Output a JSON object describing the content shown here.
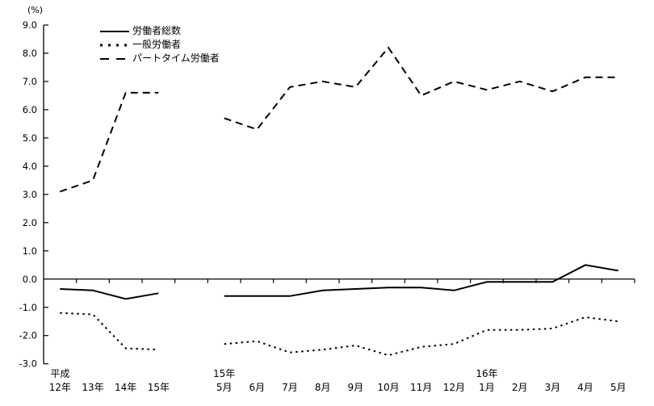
{
  "unit_label": "(%)",
  "legend": {
    "items": [
      {
        "label": "労働者総数",
        "style": "solid"
      },
      {
        "label": "一般労働者",
        "style": "dotted"
      },
      {
        "label": "パートタイム労働者",
        "style": "dashed"
      }
    ]
  },
  "chart_data": {
    "type": "line",
    "title": "",
    "ylabel": "(%)",
    "xlabel": "",
    "ylim": [
      -3.0,
      9.0
    ],
    "ytick_step": 1.0,
    "ytick_labels": [
      "9.0",
      "8.0",
      "7.0",
      "6.0",
      "5.0",
      "4.0",
      "3.0",
      "2.0",
      "1.0",
      "0.0",
      "-1.0",
      "-2.0",
      "-3.0"
    ],
    "grid": false,
    "legend_position": "top-left-inside",
    "line_color": "#000000",
    "background_color": "#ffffff",
    "categories": [
      "平成12年",
      "13年",
      "14年",
      "15年",
      "",
      "15年5月",
      "6月",
      "7月",
      "8月",
      "9月",
      "10月",
      "11月",
      "12月",
      "16年1月",
      "2月",
      "3月",
      "4月",
      "5月"
    ],
    "x_axis_labels": {
      "row1": [
        {
          "slot": 0,
          "text": "平成"
        },
        {
          "slot": 5,
          "text": "15年"
        },
        {
          "slot": 13,
          "text": "16年"
        }
      ],
      "row2": [
        {
          "slot": 0,
          "text": "12年"
        },
        {
          "slot": 1,
          "text": "13年"
        },
        {
          "slot": 2,
          "text": "14年"
        },
        {
          "slot": 3,
          "text": "15年"
        },
        {
          "slot": 5,
          "text": "5月"
        },
        {
          "slot": 6,
          "text": "6月"
        },
        {
          "slot": 7,
          "text": "7月"
        },
        {
          "slot": 8,
          "text": "8月"
        },
        {
          "slot": 9,
          "text": "9月"
        },
        {
          "slot": 10,
          "text": "10月"
        },
        {
          "slot": 11,
          "text": "11月"
        },
        {
          "slot": 12,
          "text": "12月"
        },
        {
          "slot": 13,
          "text": "1月"
        },
        {
          "slot": 14,
          "text": "2月"
        },
        {
          "slot": 15,
          "text": "3月"
        },
        {
          "slot": 16,
          "text": "4月"
        },
        {
          "slot": 17,
          "text": "5月"
        }
      ]
    },
    "series": [
      {
        "name": "労働者総数",
        "line": "solid",
        "values": [
          -0.35,
          -0.4,
          -0.7,
          -0.5,
          null,
          -0.6,
          -0.6,
          -0.6,
          -0.4,
          -0.35,
          -0.3,
          -0.3,
          -0.4,
          -0.1,
          -0.1,
          -0.1,
          0.5,
          0.3
        ]
      },
      {
        "name": "一般労働者",
        "line": "dotted",
        "values": [
          -1.2,
          -1.25,
          -2.45,
          -2.5,
          null,
          -2.3,
          -2.2,
          -2.6,
          -2.5,
          -2.35,
          -2.7,
          -2.4,
          -2.3,
          -1.8,
          -1.8,
          -1.75,
          -1.35,
          -1.5
        ]
      },
      {
        "name": "パートタイム労働者",
        "line": "dashed",
        "values": [
          3.1,
          3.5,
          6.6,
          6.6,
          null,
          5.7,
          5.3,
          6.8,
          7.0,
          6.8,
          8.2,
          6.5,
          7.0,
          6.7,
          7.0,
          6.65,
          7.15,
          7.15
        ]
      }
    ]
  }
}
